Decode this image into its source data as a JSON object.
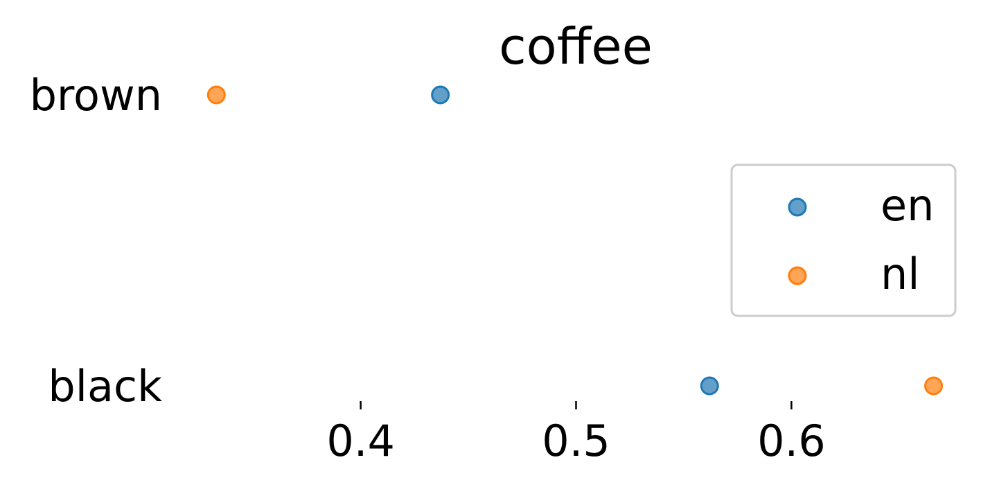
{
  "chart_data": {
    "type": "scatter",
    "title": "coffee",
    "categories": [
      "brown",
      "black"
    ],
    "xlabel": "",
    "ylabel": "",
    "xlim": [
      0.33,
      0.67
    ],
    "xticks": [
      0.4,
      0.5,
      0.6
    ],
    "xtick_labels": [
      "0.4",
      "0.5",
      "0.6"
    ],
    "grid": false,
    "legend_position": "right",
    "series": [
      {
        "name": "en",
        "color": "#1f77b4",
        "values": [
          0.437,
          0.562
        ]
      },
      {
        "name": "nl",
        "color": "#ff7f0e",
        "values": [
          0.333,
          0.666
        ]
      }
    ]
  }
}
